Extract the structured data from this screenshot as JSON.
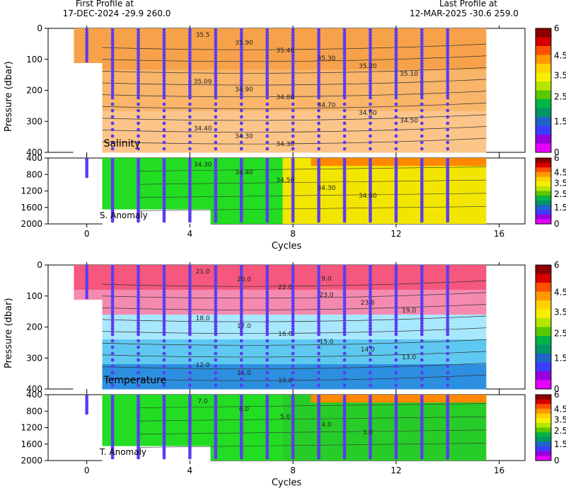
{
  "header": {
    "first_label": "First Profile at",
    "first_value": "17-DEC-2024    -29.9 260.0",
    "last_label": "Last Profile at",
    "last_value": "12-MAR-2025    -30.6 259.0"
  },
  "chart_data": [
    {
      "type": "heatmap",
      "title": "Salinity",
      "ylabel": "Pressure (dbar)",
      "ylim": [
        400,
        0
      ],
      "yticks": [
        "0",
        "100",
        "200",
        "300",
        "400"
      ],
      "xlim": [
        -1.5,
        17
      ],
      "xticks": [
        "0",
        "4",
        "8",
        "12",
        "16"
      ],
      "profile_cycles": [
        0,
        1,
        2,
        3,
        4,
        5,
        6,
        7,
        8,
        9,
        10,
        11,
        12,
        13,
        14
      ],
      "contour_labels": [
        "35.5",
        "35.90",
        "35.40",
        "35.30",
        "35.20",
        "35.10",
        "35.09",
        "34.90",
        "34.80",
        "34.70",
        "34.60",
        "34.50",
        "34.40",
        "34.30",
        "34.30"
      ]
    },
    {
      "type": "heatmap",
      "title": "S. Anomaly",
      "ylim": [
        2000,
        400
      ],
      "yticks": [
        "400",
        "800",
        "1200",
        "1600",
        "2000"
      ],
      "xlim": [
        -1.5,
        17
      ],
      "xticks": [
        "0",
        "4",
        "8",
        "12",
        "16"
      ],
      "xlabel": "Cycles",
      "contour_labels": [
        "34.30",
        "34.40",
        "34.50",
        "34.30",
        "34.60"
      ]
    },
    {
      "type": "heatmap",
      "title": "Temperature",
      "ylabel": "Pressure (dbar)",
      "ylim": [
        400,
        0
      ],
      "yticks": [
        "0",
        "100",
        "200",
        "300",
        "400"
      ],
      "xlim": [
        -1.5,
        17
      ],
      "xticks": [
        "0",
        "4",
        "8",
        "12",
        "16"
      ],
      "contour_labels": [
        "21.0",
        "20.0",
        "22.0",
        "23.0",
        "23.6",
        "19.0",
        "18.0",
        "17.0",
        "16.0",
        "15.0",
        "14.0",
        "13.0",
        "12.0",
        "11.0",
        "10.0",
        "9.0"
      ]
    },
    {
      "type": "heatmap",
      "title": "T. Anomaly",
      "ylim": [
        2000,
        400
      ],
      "yticks": [
        "400",
        "800",
        "1200",
        "1600",
        "2000"
      ],
      "xlim": [
        -1.5,
        17
      ],
      "xticks": [
        "0",
        "4",
        "8",
        "12",
        "16"
      ],
      "xlabel": "Cycles",
      "contour_labels": [
        "7.0",
        "6.0",
        "5.0",
        "4.0",
        "3.0"
      ]
    }
  ],
  "colorbar": {
    "ticks": [
      "6",
      "4.5",
      "3.5",
      "2.5",
      "1.5",
      "0"
    ],
    "colors": [
      "#8b0000",
      "#d40000",
      "#ff5000",
      "#ff9900",
      "#ffd200",
      "#f5f000",
      "#b4e600",
      "#5ac800",
      "#00b446",
      "#009664",
      "#1e64c8",
      "#3c3cff",
      "#9600dc",
      "#e600ff"
    ]
  }
}
